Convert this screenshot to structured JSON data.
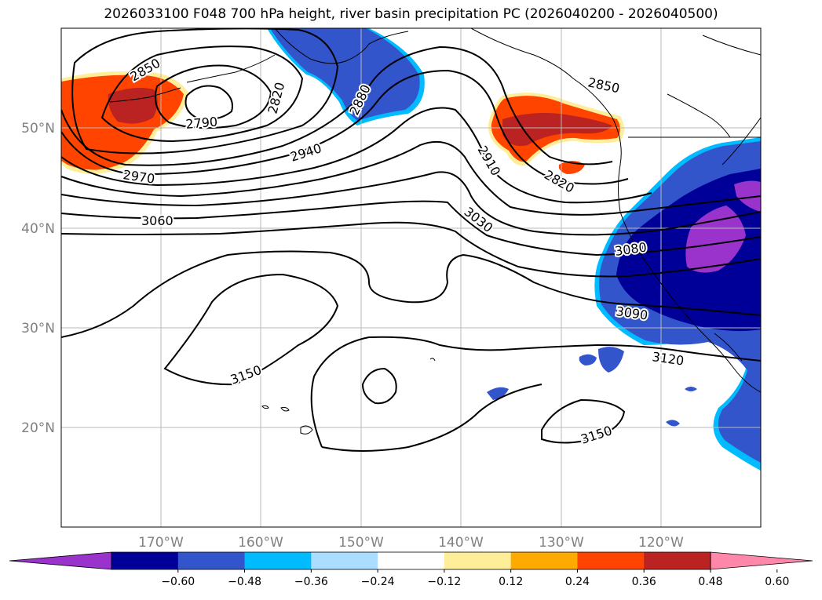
{
  "title": "2026033100 F048 700 hPa height, river basin precipitation PC (2026040200 - 2026040500)",
  "map": {
    "lon_labels": [
      "170°W",
      "160°W",
      "150°W",
      "140°W",
      "130°W",
      "120°W"
    ],
    "lat_labels": [
      "50°N",
      "40°N",
      "30°N",
      "20°N"
    ],
    "contour_labels": [
      "2850",
      "2820",
      "2880",
      "2790",
      "2940",
      "2970",
      "3060",
      "2850",
      "2910",
      "2820",
      "3030",
      "3080",
      "3090",
      "3120",
      "3150",
      "3150"
    ],
    "grid": true
  },
  "colorbar": {
    "colors": [
      "#9933cc",
      "#000099",
      "#3355cc",
      "#00bbff",
      "#aaddff",
      "#ffffff",
      "#ffee99",
      "#ffaa00",
      "#ff4400",
      "#bb2222",
      "#ff88aa"
    ],
    "tick_labels": [
      "−0.60",
      "−0.48",
      "−0.36",
      "−0.24",
      "−0.12",
      "0.12",
      "0.24",
      "0.36",
      "0.48",
      "0.60"
    ],
    "extend": "both"
  }
}
